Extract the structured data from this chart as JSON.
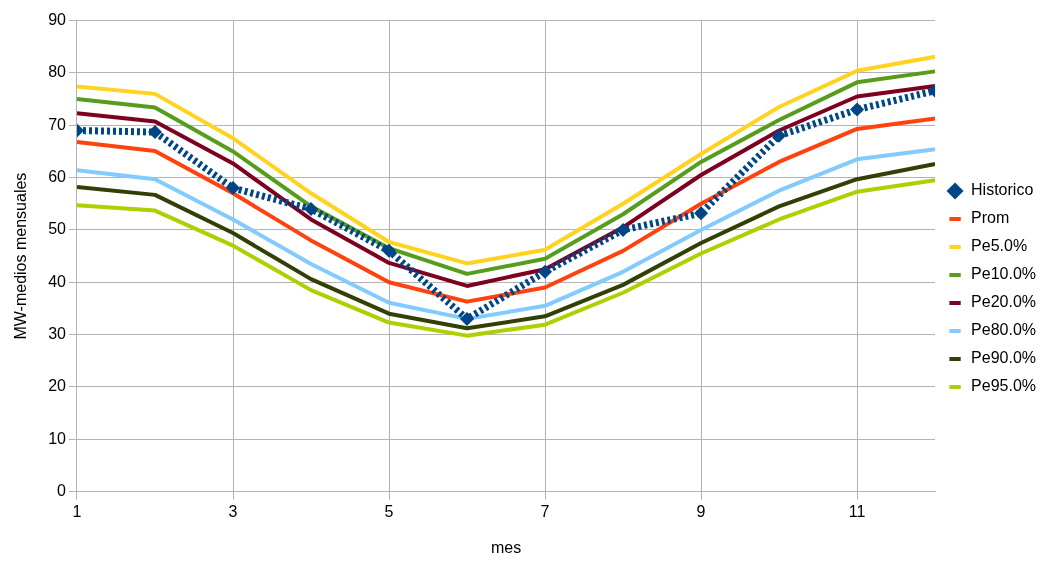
{
  "chart_data": {
    "type": "line",
    "xlabel": "mes",
    "ylabel": "MW-medios mensuales",
    "x": [
      1,
      2,
      3,
      4,
      5,
      6,
      7,
      8,
      9,
      10,
      11,
      12
    ],
    "xlim": [
      1,
      12
    ],
    "xticks": [
      1,
      3,
      5,
      7,
      9,
      11
    ],
    "ylim": [
      0,
      90
    ],
    "yticks": [
      0,
      10,
      20,
      30,
      40,
      50,
      60,
      70,
      80,
      90
    ],
    "grid": true,
    "legend": "right",
    "series": [
      {
        "name": "Historico",
        "color": "#004586",
        "marker": "diamond",
        "line_style": "dotted",
        "values": [
          69,
          68.7,
          58,
          54,
          46,
          33,
          42,
          50,
          53.2,
          68,
          73,
          76.6
        ]
      },
      {
        "name": "Prom",
        "color": "#ff420e",
        "marker": "none",
        "line_style": "solid",
        "values": [
          66.8,
          65.1,
          57,
          48,
          40,
          36.3,
          39,
          46,
          55,
          63,
          69.3,
          71.3
        ]
      },
      {
        "name": "Pe5.0%",
        "color": "#ffd320",
        "marker": "none",
        "line_style": "solid",
        "values": [
          77.4,
          76,
          67.5,
          57,
          47.7,
          43.6,
          46.2,
          55,
          64.5,
          73.5,
          80.4,
          83.1
        ]
      },
      {
        "name": "Pe10.0%",
        "color": "#579d1c",
        "marker": "none",
        "line_style": "solid",
        "values": [
          75,
          73.4,
          65,
          54.5,
          46.5,
          41.6,
          44.5,
          53,
          63,
          71,
          78.2,
          80.3
        ]
      },
      {
        "name": "Pe20.0%",
        "color": "#7e0021",
        "marker": "none",
        "line_style": "solid",
        "values": [
          72.3,
          70.7,
          62.7,
          52,
          43.7,
          39.3,
          42.5,
          50.5,
          60.5,
          69,
          75.5,
          77.5
        ]
      },
      {
        "name": "Pe80.0%",
        "color": "#83caff",
        "marker": "none",
        "line_style": "solid",
        "values": [
          61.4,
          59.7,
          52,
          43.5,
          36.1,
          33,
          35.5,
          42,
          50,
          57.5,
          63.5,
          65.4
        ]
      },
      {
        "name": "Pe90.0%",
        "color": "#314004",
        "marker": "none",
        "line_style": "solid",
        "values": [
          58.2,
          56.7,
          49.4,
          40.6,
          34,
          31.2,
          33.5,
          39.5,
          47.5,
          54.5,
          59.7,
          62.6
        ]
      },
      {
        "name": "Pe95.0%",
        "color": "#aecf00",
        "marker": "none",
        "line_style": "solid",
        "values": [
          54.7,
          53.7,
          47,
          38.5,
          32.3,
          29.8,
          31.9,
          38,
          45.5,
          52,
          57.3,
          59.5
        ]
      }
    ]
  }
}
